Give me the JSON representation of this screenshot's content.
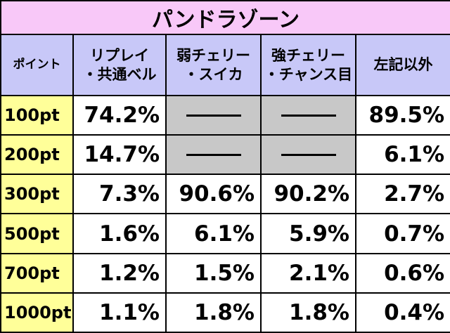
{
  "title": "パンドラゾーン",
  "table": {
    "header": [
      "ポイント",
      "リプレイ\n・共通ベル",
      "弱チェリー\n・スイカ",
      "強チェリー\n・チャンス目",
      "左記以外"
    ],
    "rows": [
      [
        "100pt",
        "74.2%",
        null,
        null,
        "89.5%"
      ],
      [
        "200pt",
        "14.7%",
        null,
        null,
        "6.1%"
      ],
      [
        "300pt",
        "7.3%",
        "90.6%",
        "90.2%",
        "2.7%"
      ],
      [
        "500pt",
        "1.6%",
        "6.1%",
        "5.9%",
        "0.7%"
      ],
      [
        "700pt",
        "1.2%",
        "1.5%",
        "2.1%",
        "0.6%"
      ],
      [
        "1000pt",
        "1.1%",
        "1.8%",
        "1.8%",
        "0.4%"
      ]
    ]
  }
}
